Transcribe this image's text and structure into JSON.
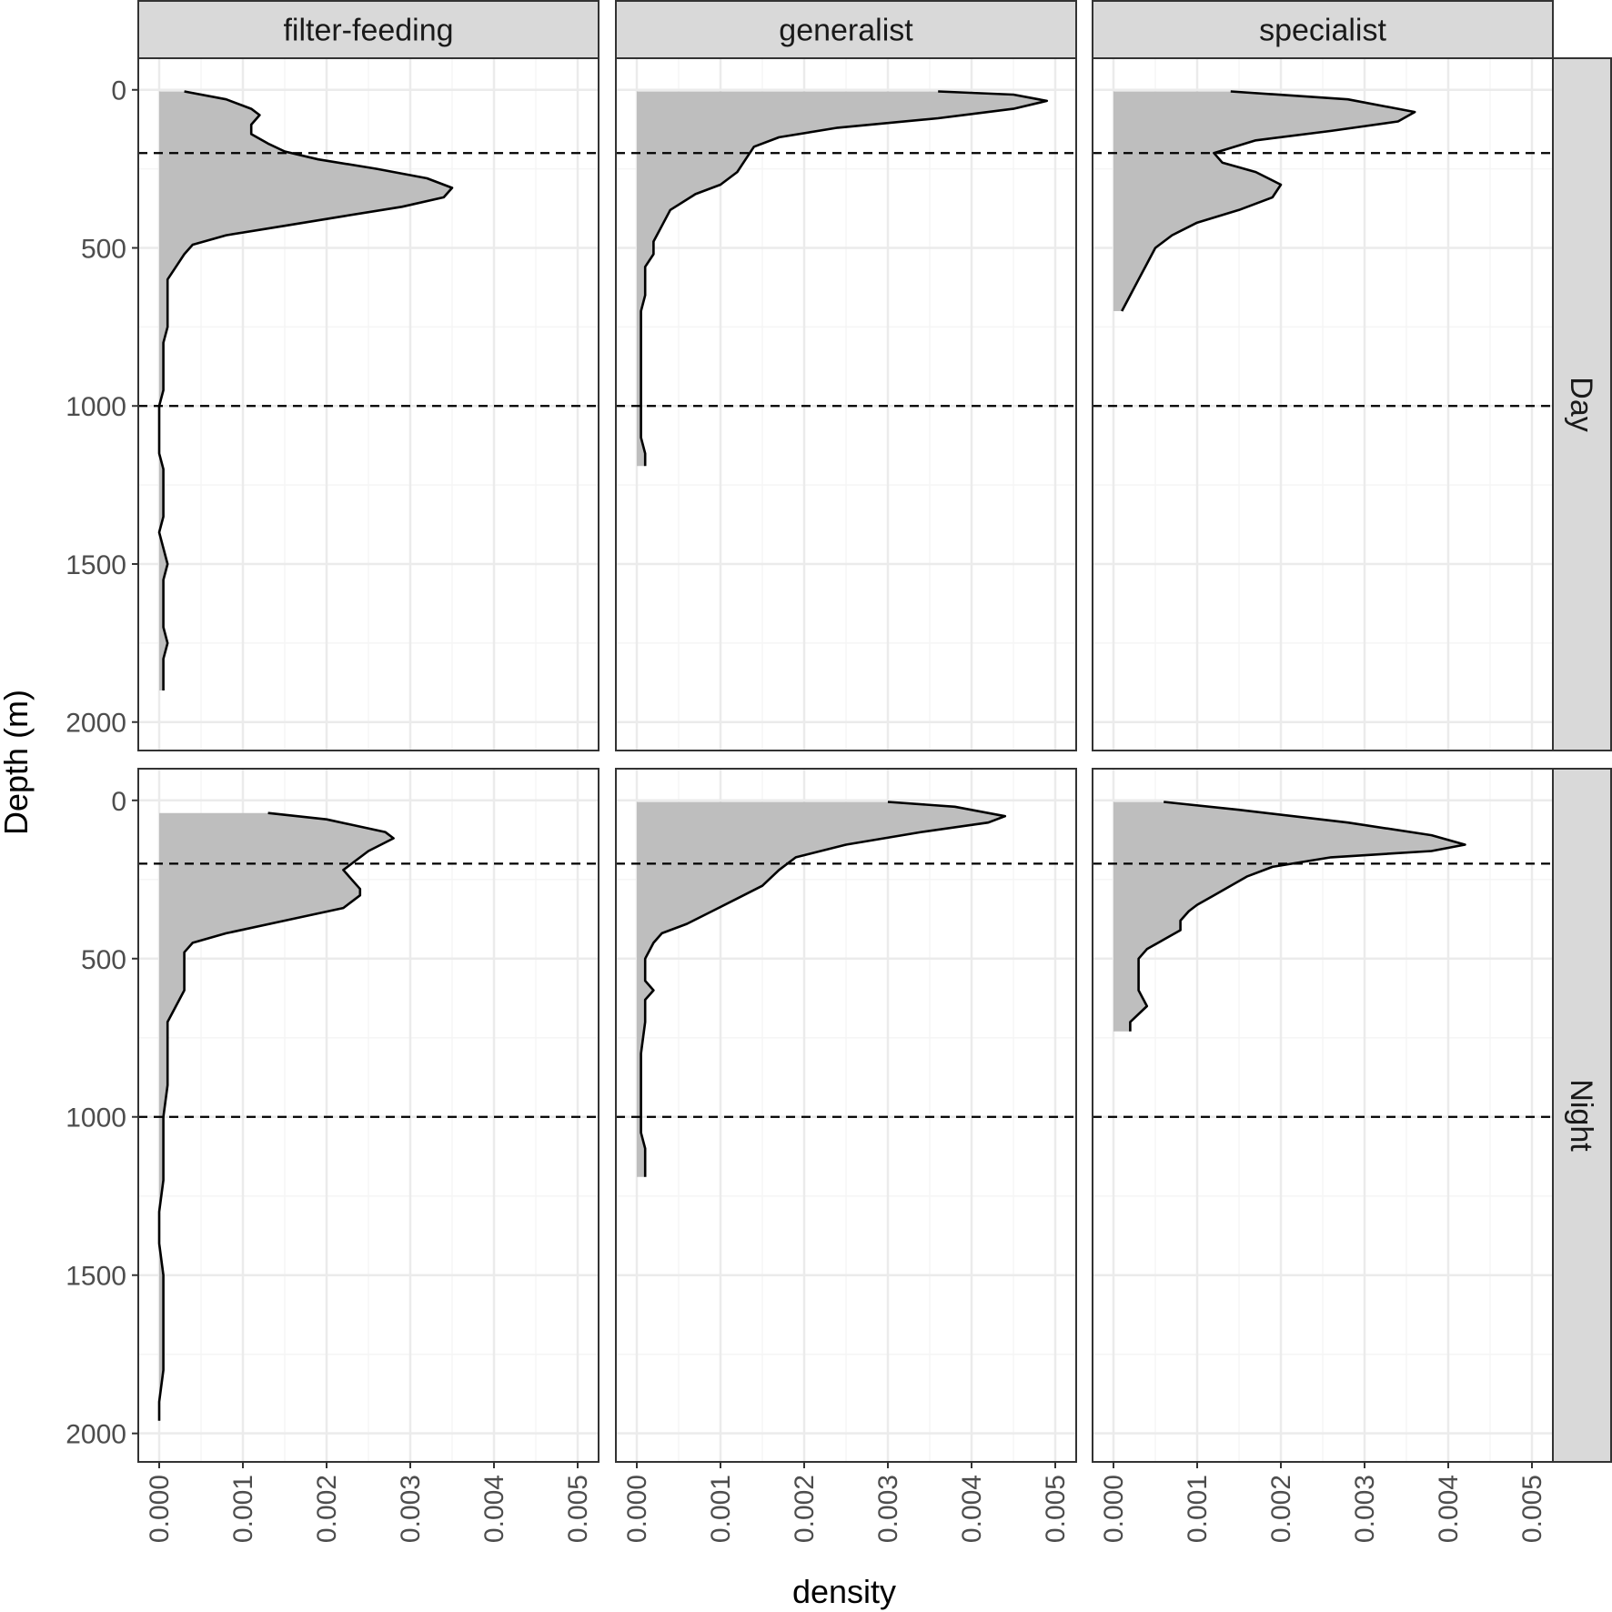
{
  "chart_data": {
    "type": "area",
    "xlabel": "density",
    "ylabel": "Depth (m)",
    "xlim": [
      -0.00025,
      0.00525
    ],
    "ylim": [
      2090,
      -100
    ],
    "x_ticks": [
      0,
      0.001,
      0.002,
      0.003,
      0.004,
      0.005
    ],
    "x_tick_labels": [
      "0.000",
      "0.001",
      "0.002",
      "0.003",
      "0.004",
      "0.005"
    ],
    "y_ticks": [
      0,
      500,
      1000,
      1500,
      2000
    ],
    "y_tick_labels": [
      "0",
      "500",
      "1000",
      "1500",
      "2000"
    ],
    "reference_lines_depth": [
      200,
      1000
    ],
    "grid": true,
    "columns": [
      "filter-feeding",
      "generalist",
      "specialist"
    ],
    "rows": [
      "Day",
      "Night"
    ],
    "colors": {
      "fill": "#bebebe",
      "line": "#000000",
      "strip": "#d9d9d9",
      "panel_border": "#333333",
      "grid_major": "#ebebeb",
      "grid_minor": "#f5f5f5"
    },
    "panels": [
      {
        "column": "filter-feeding",
        "row": "Day",
        "points": [
          [
            0.0003,
            5
          ],
          [
            0.0008,
            30
          ],
          [
            0.0011,
            60
          ],
          [
            0.0012,
            80
          ],
          [
            0.0011,
            110
          ],
          [
            0.0011,
            140
          ],
          [
            0.0013,
            170
          ],
          [
            0.0015,
            195
          ],
          [
            0.0019,
            220
          ],
          [
            0.0026,
            250
          ],
          [
            0.0032,
            280
          ],
          [
            0.0035,
            310
          ],
          [
            0.0034,
            340
          ],
          [
            0.0029,
            370
          ],
          [
            0.0022,
            400
          ],
          [
            0.0015,
            430
          ],
          [
            0.0008,
            460
          ],
          [
            0.0004,
            490
          ],
          [
            0.0003,
            520
          ],
          [
            0.0002,
            560
          ],
          [
            0.0001,
            600
          ],
          [
            0.0001,
            650
          ],
          [
            0.0001,
            700
          ],
          [
            0.0001,
            750
          ],
          [
            5e-05,
            800
          ],
          [
            5e-05,
            850
          ],
          [
            5e-05,
            900
          ],
          [
            5e-05,
            950
          ],
          [
            0,
            1000
          ],
          [
            0,
            1050
          ],
          [
            0,
            1100
          ],
          [
            0,
            1150
          ],
          [
            5e-05,
            1200
          ],
          [
            5e-05,
            1250
          ],
          [
            5e-05,
            1300
          ],
          [
            5e-05,
            1350
          ],
          [
            0,
            1400
          ],
          [
            5e-05,
            1450
          ],
          [
            0.0001,
            1500
          ],
          [
            5e-05,
            1550
          ],
          [
            5e-05,
            1600
          ],
          [
            5e-05,
            1650
          ],
          [
            5e-05,
            1700
          ],
          [
            0.0001,
            1750
          ],
          [
            5e-05,
            1800
          ],
          [
            5e-05,
            1850
          ],
          [
            5e-05,
            1900
          ]
        ]
      },
      {
        "column": "generalist",
        "row": "Day",
        "points": [
          [
            0.0036,
            5
          ],
          [
            0.0045,
            15
          ],
          [
            0.0049,
            35
          ],
          [
            0.0045,
            60
          ],
          [
            0.0036,
            90
          ],
          [
            0.0024,
            120
          ],
          [
            0.0017,
            150
          ],
          [
            0.0014,
            180
          ],
          [
            0.0013,
            220
          ],
          [
            0.0012,
            260
          ],
          [
            0.001,
            300
          ],
          [
            0.0007,
            330
          ],
          [
            0.0004,
            380
          ],
          [
            0.0003,
            430
          ],
          [
            0.0002,
            480
          ],
          [
            0.0002,
            520
          ],
          [
            0.0001,
            560
          ],
          [
            0.0001,
            600
          ],
          [
            0.0001,
            650
          ],
          [
            5e-05,
            700
          ],
          [
            5e-05,
            750
          ],
          [
            5e-05,
            800
          ],
          [
            5e-05,
            850
          ],
          [
            5e-05,
            900
          ],
          [
            5e-05,
            950
          ],
          [
            5e-05,
            1000
          ],
          [
            5e-05,
            1050
          ],
          [
            5e-05,
            1100
          ],
          [
            0.0001,
            1150
          ],
          [
            0.0001,
            1190
          ]
        ]
      },
      {
        "column": "specialist",
        "row": "Day",
        "points": [
          [
            0.0014,
            5
          ],
          [
            0.0028,
            30
          ],
          [
            0.0036,
            70
          ],
          [
            0.0034,
            100
          ],
          [
            0.0026,
            130
          ],
          [
            0.0017,
            160
          ],
          [
            0.0012,
            200
          ],
          [
            0.0013,
            230
          ],
          [
            0.0017,
            260
          ],
          [
            0.002,
            300
          ],
          [
            0.0019,
            340
          ],
          [
            0.0015,
            380
          ],
          [
            0.001,
            420
          ],
          [
            0.0007,
            460
          ],
          [
            0.0005,
            500
          ],
          [
            0.0004,
            550
          ],
          [
            0.0003,
            600
          ],
          [
            0.0002,
            650
          ],
          [
            0.0001,
            700
          ]
        ]
      },
      {
        "column": "filter-feeding",
        "row": "Night",
        "points": [
          [
            0.0013,
            40
          ],
          [
            0.002,
            60
          ],
          [
            0.0027,
            100
          ],
          [
            0.0028,
            120
          ],
          [
            0.0025,
            160
          ],
          [
            0.0023,
            200
          ],
          [
            0.0022,
            220
          ],
          [
            0.0023,
            250
          ],
          [
            0.0024,
            280
          ],
          [
            0.0024,
            300
          ],
          [
            0.0022,
            340
          ],
          [
            0.0015,
            380
          ],
          [
            0.0008,
            420
          ],
          [
            0.0004,
            450
          ],
          [
            0.0003,
            480
          ],
          [
            0.0003,
            520
          ],
          [
            0.0003,
            560
          ],
          [
            0.0003,
            600
          ],
          [
            0.0002,
            650
          ],
          [
            0.0001,
            700
          ],
          [
            0.0001,
            800
          ],
          [
            0.0001,
            900
          ],
          [
            5e-05,
            1000
          ],
          [
            5e-05,
            1100
          ],
          [
            5e-05,
            1200
          ],
          [
            0,
            1300
          ],
          [
            0,
            1400
          ],
          [
            5e-05,
            1500
          ],
          [
            5e-05,
            1600
          ],
          [
            5e-05,
            1700
          ],
          [
            5e-05,
            1800
          ],
          [
            0,
            1900
          ],
          [
            0,
            1960
          ]
        ]
      },
      {
        "column": "generalist",
        "row": "Night",
        "points": [
          [
            0.003,
            5
          ],
          [
            0.0038,
            20
          ],
          [
            0.0044,
            50
          ],
          [
            0.0042,
            70
          ],
          [
            0.0034,
            100
          ],
          [
            0.0025,
            140
          ],
          [
            0.0019,
            180
          ],
          [
            0.0017,
            220
          ],
          [
            0.0015,
            270
          ],
          [
            0.0012,
            310
          ],
          [
            0.0009,
            350
          ],
          [
            0.0006,
            390
          ],
          [
            0.0003,
            420
          ],
          [
            0.0002,
            450
          ],
          [
            0.0001,
            500
          ],
          [
            0.0001,
            540
          ],
          [
            0.0001,
            570
          ],
          [
            0.0002,
            600
          ],
          [
            0.0001,
            630
          ],
          [
            0.0001,
            700
          ],
          [
            5e-05,
            800
          ],
          [
            5e-05,
            900
          ],
          [
            5e-05,
            1000
          ],
          [
            5e-05,
            1050
          ],
          [
            0.0001,
            1100
          ],
          [
            0.0001,
            1150
          ],
          [
            0.0001,
            1190
          ]
        ]
      },
      {
        "column": "specialist",
        "row": "Night",
        "points": [
          [
            0.0006,
            5
          ],
          [
            0.0015,
            30
          ],
          [
            0.0028,
            70
          ],
          [
            0.0038,
            110
          ],
          [
            0.0042,
            140
          ],
          [
            0.0038,
            160
          ],
          [
            0.0026,
            180
          ],
          [
            0.0019,
            210
          ],
          [
            0.0016,
            240
          ],
          [
            0.0014,
            270
          ],
          [
            0.0012,
            300
          ],
          [
            0.001,
            330
          ],
          [
            0.0009,
            350
          ],
          [
            0.0008,
            380
          ],
          [
            0.0008,
            410
          ],
          [
            0.0006,
            440
          ],
          [
            0.0004,
            470
          ],
          [
            0.0003,
            500
          ],
          [
            0.0003,
            550
          ],
          [
            0.0003,
            600
          ],
          [
            0.0004,
            650
          ],
          [
            0.0002,
            700
          ],
          [
            0.0002,
            730
          ]
        ]
      }
    ]
  }
}
